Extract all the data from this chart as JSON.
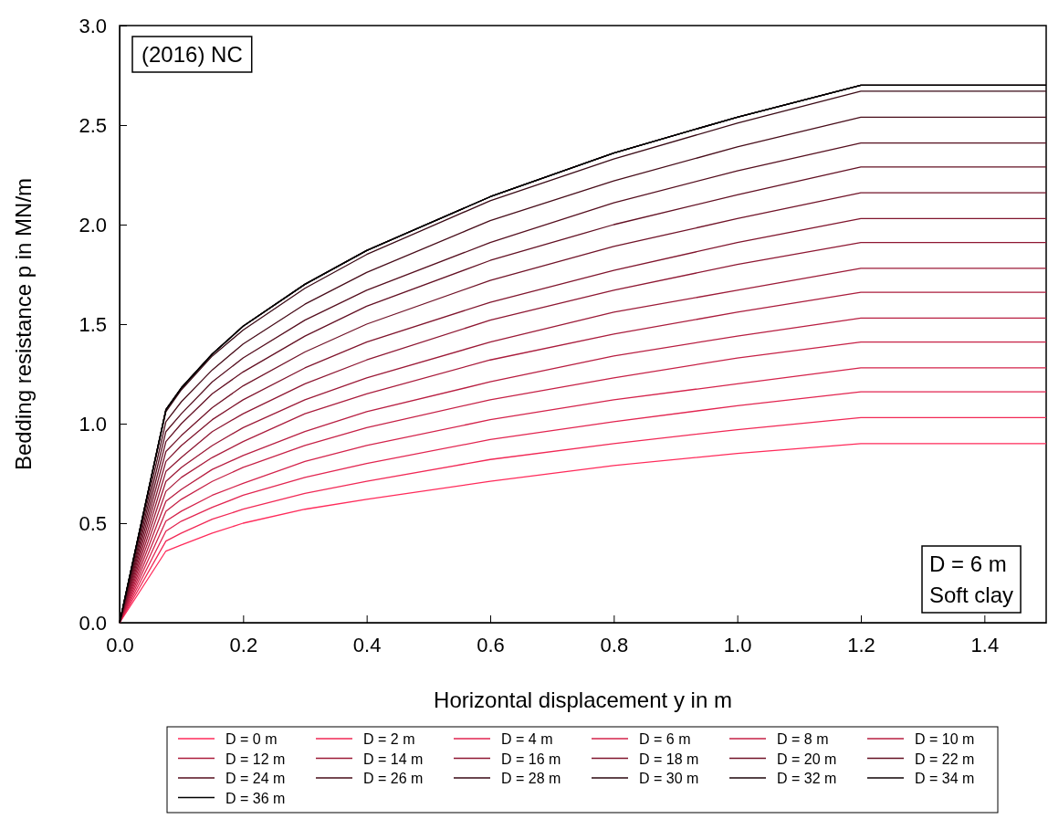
{
  "chart_data": {
    "type": "line",
    "xlabel": "Horizontal displacement y in m",
    "ylabel": "Bedding resistance p in MN/m",
    "annotations": [
      "(2016) NC",
      "D = 6 m",
      "Soft clay"
    ],
    "x": [
      0,
      0.075,
      0.1,
      0.15,
      0.2,
      0.3,
      0.4,
      0.6,
      0.8,
      1.0,
      1.2,
      1.5
    ],
    "xlim": [
      0,
      1.5
    ],
    "xticks": [
      {
        "value": 0,
        "label": "0.0"
      },
      0.2,
      0.4,
      0.6,
      0.8,
      {
        "value": 1,
        "label": "1.0"
      },
      1.2,
      1.4
    ],
    "ylim": [
      0,
      3
    ],
    "yticks": [
      {
        "value": 0,
        "label": "0.0"
      },
      0.5,
      {
        "value": 1,
        "label": "1.0"
      },
      1.5,
      {
        "value": 2,
        "label": "2.0"
      },
      2.5,
      {
        "value": 3,
        "label": "3.0"
      }
    ],
    "grid": false,
    "legend": "bottom",
    "marker": "none",
    "line_style": "solid",
    "series": [
      {
        "name": "D = 0 m",
        "color": "#ff2a5a",
        "values": [
          0,
          0.36,
          0.39,
          0.45,
          0.5,
          0.57,
          0.62,
          0.71,
          0.79,
          0.85,
          0.9,
          0.9
        ]
      },
      {
        "name": "D = 2 m",
        "color": "#f12855",
        "values": [
          0,
          0.41,
          0.45,
          0.52,
          0.57,
          0.65,
          0.71,
          0.82,
          0.9,
          0.97,
          1.03,
          1.03
        ]
      },
      {
        "name": "D = 4 m",
        "color": "#e22550",
        "values": [
          0,
          0.46,
          0.51,
          0.58,
          0.64,
          0.73,
          0.8,
          0.92,
          1.01,
          1.09,
          1.16,
          1.16
        ]
      },
      {
        "name": "D = 6 m",
        "color": "#d4234b",
        "values": [
          0,
          0.51,
          0.56,
          0.64,
          0.7,
          0.81,
          0.89,
          1.02,
          1.12,
          1.2,
          1.28,
          1.28
        ]
      },
      {
        "name": "D = 8 m",
        "color": "#c62146",
        "values": [
          0,
          0.56,
          0.62,
          0.71,
          0.78,
          0.89,
          0.98,
          1.12,
          1.23,
          1.33,
          1.41,
          1.41
        ]
      },
      {
        "name": "D = 10 m",
        "color": "#b81e41",
        "values": [
          0,
          0.61,
          0.67,
          0.77,
          0.84,
          0.96,
          1.06,
          1.21,
          1.34,
          1.44,
          1.53,
          1.53
        ]
      },
      {
        "name": "D = 12 m",
        "color": "#aa1c3c",
        "values": [
          0,
          0.66,
          0.73,
          0.83,
          0.91,
          1.05,
          1.15,
          1.32,
          1.45,
          1.56,
          1.66,
          1.66
        ]
      },
      {
        "name": "D = 14 m",
        "color": "#9c1a37",
        "values": [
          0,
          0.71,
          0.78,
          0.89,
          0.98,
          1.12,
          1.23,
          1.41,
          1.56,
          1.67,
          1.78,
          1.78
        ]
      },
      {
        "name": "D = 16 m",
        "color": "#8e1732",
        "values": [
          0,
          0.76,
          0.83,
          0.96,
          1.05,
          1.2,
          1.32,
          1.52,
          1.67,
          1.8,
          1.91,
          1.91
        ]
      },
      {
        "name": "D = 18 m",
        "color": "#80152d",
        "values": [
          0,
          0.81,
          0.89,
          1.02,
          1.12,
          1.28,
          1.41,
          1.61,
          1.77,
          1.91,
          2.03,
          2.03
        ]
      },
      {
        "name": "D = 20 m",
        "color": "#711328",
        "values": [
          0,
          0.86,
          0.94,
          1.08,
          1.19,
          1.36,
          1.5,
          1.72,
          1.89,
          2.03,
          2.16,
          2.16
        ]
      },
      {
        "name": "D = 22 m",
        "color": "#631023",
        "values": [
          0,
          0.91,
          1.0,
          1.15,
          1.26,
          1.44,
          1.59,
          1.82,
          2.0,
          2.15,
          2.29,
          2.29
        ]
      },
      {
        "name": "D = 24 m",
        "color": "#550e1e",
        "values": [
          0,
          0.96,
          1.05,
          1.21,
          1.33,
          1.52,
          1.67,
          1.91,
          2.11,
          2.27,
          2.41,
          2.41
        ]
      },
      {
        "name": "D = 26 m",
        "color": "#470c19",
        "values": [
          0,
          1.01,
          1.11,
          1.27,
          1.4,
          1.6,
          1.76,
          2.02,
          2.22,
          2.39,
          2.54,
          2.54
        ]
      },
      {
        "name": "D = 28 m",
        "color": "#390914",
        "values": [
          0,
          1.06,
          1.17,
          1.34,
          1.47,
          1.68,
          1.85,
          2.12,
          2.33,
          2.51,
          2.67,
          2.67
        ]
      },
      {
        "name": "D = 30 m",
        "color": "#2b070f",
        "values": [
          0,
          1.07,
          1.18,
          1.35,
          1.49,
          1.7,
          1.87,
          2.14,
          2.36,
          2.54,
          2.7,
          2.7
        ]
      },
      {
        "name": "D = 32 m",
        "color": "#1c050a",
        "values": [
          0,
          1.07,
          1.18,
          1.35,
          1.49,
          1.7,
          1.87,
          2.14,
          2.36,
          2.54,
          2.7,
          2.7
        ]
      },
      {
        "name": "D = 34 m",
        "color": "#0e0205",
        "values": [
          0,
          1.07,
          1.18,
          1.35,
          1.49,
          1.7,
          1.87,
          2.14,
          2.36,
          2.54,
          2.7,
          2.7
        ]
      },
      {
        "name": "D = 36 m",
        "color": "#000000",
        "values": [
          0,
          1.07,
          1.18,
          1.35,
          1.49,
          1.7,
          1.87,
          2.14,
          2.36,
          2.54,
          2.7,
          2.7
        ]
      }
    ]
  }
}
